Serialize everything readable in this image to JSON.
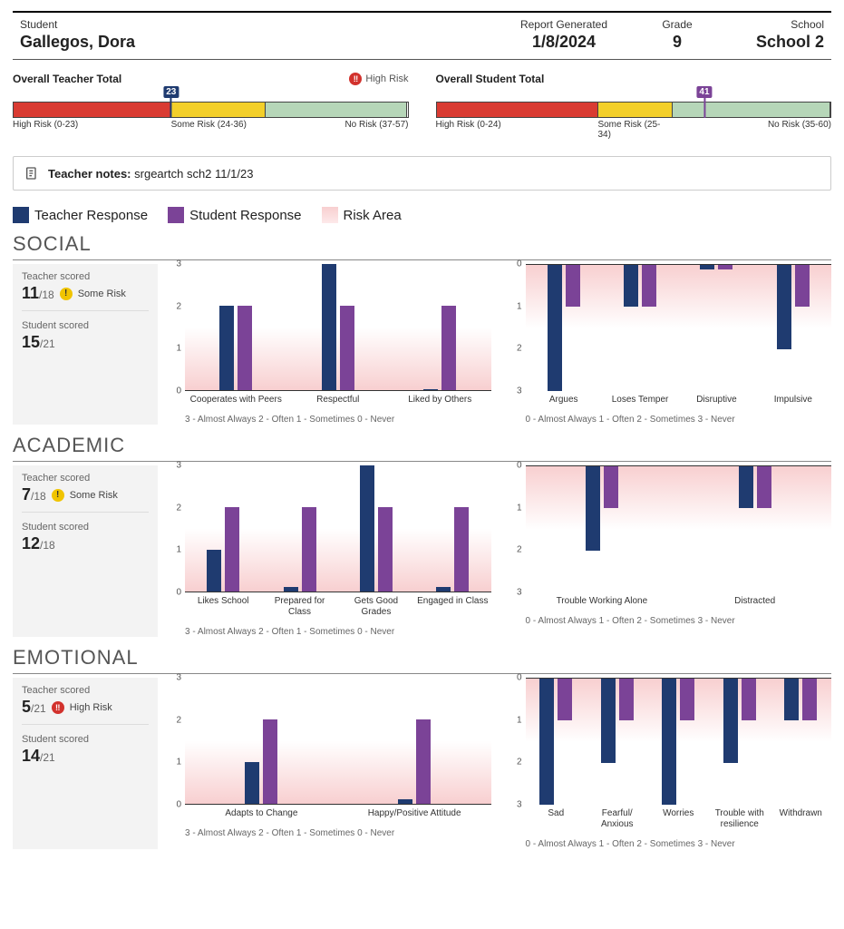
{
  "colors": {
    "teacher": "#1f3b70",
    "student": "#7b4397",
    "riskAreaTop": "#f8cfd0",
    "riskAreaBottom": "#ffffff",
    "highRisk": "#d93b32",
    "someRisk": "#f3cf2a",
    "noRisk": "#b6d6b8"
  },
  "header": {
    "studentLabel": "Student",
    "studentName": "Gallegos, Dora",
    "dateLabel": "Report Generated",
    "dateValue": "1/8/2024",
    "gradeLabel": "Grade",
    "gradeValue": "9",
    "schoolLabel": "School",
    "schoolValue": "School 2"
  },
  "totals": {
    "teacher": {
      "title": "Overall Teacher Total",
      "flagText": "High Risk",
      "flagIcon": "‼",
      "markerValue": "23",
      "segments": [
        {
          "label": "High Risk (0-23)",
          "width": 40,
          "color": "#d93b32"
        },
        {
          "label": "Some Risk (24-36)",
          "width": 24,
          "color": "#f3cf2a"
        },
        {
          "label": "No Risk (37-57)",
          "width": 36,
          "color": "#b6d6b8"
        }
      ],
      "markerPct": 40
    },
    "student": {
      "title": "Overall Student Total",
      "markerValue": "41",
      "markerColor": "#7b4397",
      "segments": [
        {
          "label": "High Risk (0-24)",
          "width": 41,
          "color": "#d93b32"
        },
        {
          "label": "Some Risk (25-34)",
          "width": 19,
          "color": "#f3cf2a"
        },
        {
          "label": "No Risk (35-60)",
          "width": 40,
          "color": "#b6d6b8"
        }
      ],
      "markerPct": 68
    }
  },
  "notes": {
    "label": "Teacher notes:",
    "text": "srgeartch sch2 11/1/23"
  },
  "legend": {
    "teacher": "Teacher Response",
    "student": "Student Response",
    "risk": "Risk Area"
  },
  "sections": [
    {
      "title": "SOCIAL",
      "teacherScore": "11",
      "teacherMax": "/18",
      "teacherRisk": "Some Risk",
      "teacherRiskType": "some",
      "studentScore": "15",
      "studentMax": "/21",
      "positive": {
        "max": 3,
        "yTicks": [
          0,
          1,
          2,
          3
        ],
        "riskTop": 0,
        "riskBottom": 1.5,
        "scaleNote": "3 - Almost Always   2 - Often   1 - Sometimes   0 - Never",
        "items": [
          {
            "label": "Cooperates with Peers",
            "t": 2,
            "s": 2
          },
          {
            "label": "Respectful",
            "t": 3,
            "s": 2
          },
          {
            "label": "Liked by Others",
            "t": 0,
            "s": 2
          }
        ]
      },
      "negative": {
        "max": 3,
        "yTicks": [
          0,
          1,
          2,
          3
        ],
        "riskTop": 0,
        "riskBottom": 1.5,
        "scaleNote": "0 - Almost Always   1 - Often   2 - Sometimes   3 - Never",
        "items": [
          {
            "label": "Argues",
            "t": 0,
            "s": 2
          },
          {
            "label": "Loses Temper",
            "t": 2,
            "s": 2
          },
          {
            "label": "Disruptive",
            "t": 2.9,
            "s": 2.9
          },
          {
            "label": "Impulsive",
            "t": 1,
            "s": 2
          }
        ]
      }
    },
    {
      "title": "ACADEMIC",
      "teacherScore": "7",
      "teacherMax": "/18",
      "teacherRisk": "Some Risk",
      "teacherRiskType": "some",
      "studentScore": "12",
      "studentMax": "/18",
      "positive": {
        "max": 3,
        "yTicks": [
          0,
          1,
          2,
          3
        ],
        "riskTop": 0,
        "riskBottom": 1.5,
        "scaleNote": "3 - Almost Always   2 - Often   1 - Sometimes   0 - Never",
        "items": [
          {
            "label": "Likes School",
            "t": 1,
            "s": 2
          },
          {
            "label": "Prepared for Class",
            "t": 0.1,
            "s": 2
          },
          {
            "label": "Gets Good Grades",
            "t": 3,
            "s": 2
          },
          {
            "label": "Engaged in Class",
            "t": 0.1,
            "s": 2
          }
        ]
      },
      "negative": {
        "max": 3,
        "yTicks": [
          0,
          1,
          2,
          3
        ],
        "riskTop": 0,
        "riskBottom": 1.5,
        "scaleNote": "0 - Almost Always   1 - Often   2 - Sometimes   3 - Never",
        "items": [
          {
            "label": "Trouble Working Alone",
            "t": 1,
            "s": 2
          },
          {
            "label": "Distracted",
            "t": 2,
            "s": 2
          }
        ]
      }
    },
    {
      "title": "EMOTIONAL",
      "teacherScore": "5",
      "teacherMax": "/21",
      "teacherRisk": "High Risk",
      "teacherRiskType": "high",
      "studentScore": "14",
      "studentMax": "/21",
      "positive": {
        "max": 3,
        "yTicks": [
          0,
          1,
          2,
          3
        ],
        "riskTop": 0,
        "riskBottom": 1.5,
        "scaleNote": "3 - Almost Always   2 - Often   1 - Sometimes   0 - Never",
        "items": [
          {
            "label": "Adapts to Change",
            "t": 1,
            "s": 2
          },
          {
            "label": "Happy/Positive Attitude",
            "t": 0.1,
            "s": 2
          }
        ]
      },
      "negative": {
        "max": 3,
        "yTicks": [
          0,
          1,
          2,
          3
        ],
        "riskTop": 0,
        "riskBottom": 1.5,
        "scaleNote": "0 - Almost Always   1 - Often   2 - Sometimes   3 - Never",
        "items": [
          {
            "label": "Sad",
            "t": 0,
            "s": 2
          },
          {
            "label": "Fearful/ Anxious",
            "t": 1,
            "s": 2
          },
          {
            "label": "Worries",
            "t": 0,
            "s": 2
          },
          {
            "label": "Trouble with resilience",
            "t": 1,
            "s": 2
          },
          {
            "label": "Withdrawn",
            "t": 2,
            "s": 2
          }
        ]
      }
    }
  ],
  "scoreLabels": {
    "teacher": "Teacher scored",
    "student": "Student scored"
  }
}
